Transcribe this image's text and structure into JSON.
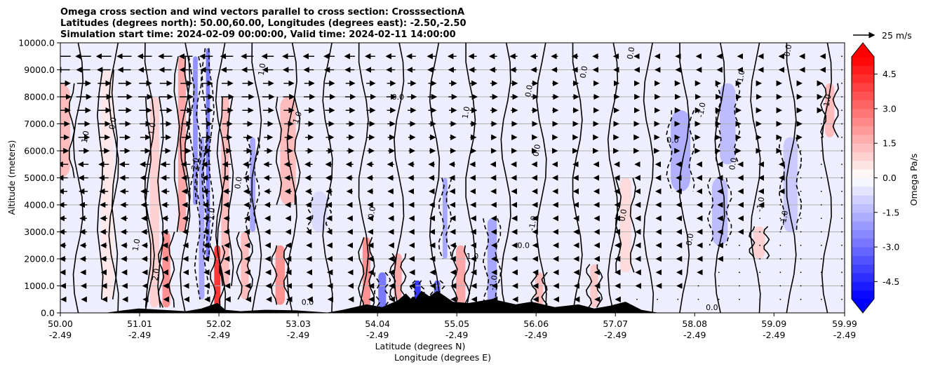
{
  "chart_data": {
    "type": "heatmap",
    "title_lines": [
      "Omega cross section and wind vectors parallel to cross section: CrosssectionA",
      "Latitudes (degrees north): 50.00,60.00, Longitudes (degrees east): -2.50,-2.50",
      "Simulation start time: 2024-02-09 00:00:00, Valid time: 2024-02-11 14:00:00"
    ],
    "xlabel_lat": "Latitude (degrees N)",
    "xlabel_lon": "Longitude (degrees E)",
    "ylabel": "Altitude (meters)",
    "x_range": [
      50.0,
      59.99
    ],
    "ylim": [
      0,
      10000
    ],
    "x_ticks_lat": [
      "50.00",
      "51.01",
      "52.02",
      "53.03",
      "54.04",
      "55.05",
      "56.06",
      "57.07",
      "58.08",
      "59.09",
      "59.99"
    ],
    "x_tick_values": [
      50.0,
      51.01,
      52.02,
      53.03,
      54.04,
      55.05,
      56.06,
      57.07,
      58.08,
      59.09,
      59.99
    ],
    "x_ticks_lon": [
      "-2.49",
      "-2.49",
      "-2.49",
      "-2.49",
      "-2.49",
      "-2.49",
      "-2.49",
      "-2.49",
      "-2.49",
      "-2.49",
      "-2.49"
    ],
    "y_tick_values": [
      0,
      1000,
      2000,
      3000,
      4000,
      5000,
      6000,
      7000,
      8000,
      9000,
      10000
    ],
    "y_tick_labels": [
      "0.0",
      "1000.0",
      "2000.0",
      "3000.0",
      "4000.0",
      "5000.0",
      "6000.0",
      "7000.0",
      "8000.0",
      "9000.0",
      "10000.0"
    ],
    "colorbar": {
      "label": "Omega Pa/s",
      "min": -5.25,
      "max": 5.25,
      "step": 0.375,
      "tick_values": [
        4.5,
        3.0,
        1.5,
        0.0,
        -1.5,
        -3.0,
        -4.5
      ],
      "tick_labels": [
        "4.5",
        "3.0",
        "1.5",
        "0.0",
        "-1.5",
        "-3.0",
        "-4.5"
      ],
      "extend": "both",
      "neg_color": "#0000ff",
      "zero_color": "#ffffff",
      "pos_color": "#ff0000"
    },
    "vector_key": {
      "label": "25 m/s",
      "speed": 25
    },
    "omega_features": [
      {
        "lat": 50.0,
        "z0": 5000,
        "z1": 8500,
        "w": 0.25,
        "omega": 1.5
      },
      {
        "lat": 50.6,
        "z0": 500,
        "z1": 9000,
        "w": 0.15,
        "omega": 0.5
      },
      {
        "lat": 51.2,
        "z0": 200,
        "z1": 8000,
        "w": 0.12,
        "omega": 1.0
      },
      {
        "lat": 51.35,
        "z0": 200,
        "z1": 3000,
        "w": 0.1,
        "omega": 2.5
      },
      {
        "lat": 51.55,
        "z0": 3000,
        "z1": 9500,
        "w": 0.1,
        "omega": 2.0
      },
      {
        "lat": 51.72,
        "z0": 4000,
        "z1": 9500,
        "w": 0.06,
        "omega": -2.5
      },
      {
        "lat": 51.8,
        "z0": 500,
        "z1": 6500,
        "w": 0.07,
        "omega": -2.0
      },
      {
        "lat": 51.88,
        "z0": 2000,
        "z1": 9800,
        "w": 0.05,
        "omega": -3.0
      },
      {
        "lat": 52.0,
        "z0": 0,
        "z1": 2500,
        "w": 0.08,
        "omega": 4.5
      },
      {
        "lat": 52.1,
        "z0": 1000,
        "z1": 8000,
        "w": 0.1,
        "omega": 1.5
      },
      {
        "lat": 52.35,
        "z0": 500,
        "z1": 3000,
        "w": 0.1,
        "omega": 1.5
      },
      {
        "lat": 52.45,
        "z0": 3000,
        "z1": 6500,
        "w": 0.07,
        "omega": -2.0
      },
      {
        "lat": 52.8,
        "z0": 300,
        "z1": 2500,
        "w": 0.12,
        "omega": 2.5
      },
      {
        "lat": 52.9,
        "z0": 4000,
        "z1": 8000,
        "w": 0.2,
        "omega": 1.5
      },
      {
        "lat": 53.3,
        "z0": 3000,
        "z1": 4500,
        "w": 0.2,
        "omega": -0.8
      },
      {
        "lat": 53.9,
        "z0": 100,
        "z1": 2800,
        "w": 0.1,
        "omega": 2.5
      },
      {
        "lat": 54.1,
        "z0": 100,
        "z1": 1500,
        "w": 0.1,
        "omega": -3.0
      },
      {
        "lat": 54.3,
        "z0": 500,
        "z1": 2200,
        "w": 0.1,
        "omega": 2.0
      },
      {
        "lat": 54.55,
        "z0": 100,
        "z1": 1200,
        "w": 0.08,
        "omega": -4.5
      },
      {
        "lat": 54.8,
        "z0": 100,
        "z1": 1200,
        "w": 0.08,
        "omega": -3.5
      },
      {
        "lat": 54.9,
        "z0": 2000,
        "z1": 5000,
        "w": 0.06,
        "omega": -2.0
      },
      {
        "lat": 55.1,
        "z0": 300,
        "z1": 2500,
        "w": 0.12,
        "omega": 2.0
      },
      {
        "lat": 55.5,
        "z0": 300,
        "z1": 3500,
        "w": 0.12,
        "omega": -2.0
      },
      {
        "lat": 56.1,
        "z0": 200,
        "z1": 1500,
        "w": 0.1,
        "omega": 1.5
      },
      {
        "lat": 56.8,
        "z0": 200,
        "z1": 1800,
        "w": 0.1,
        "omega": 1.2
      },
      {
        "lat": 57.2,
        "z0": 1500,
        "z1": 5000,
        "w": 0.15,
        "omega": 0.8
      },
      {
        "lat": 57.9,
        "z0": 4500,
        "z1": 7500,
        "w": 0.25,
        "omega": -1.8
      },
      {
        "lat": 58.4,
        "z0": 2500,
        "z1": 5000,
        "w": 0.2,
        "omega": -1.5
      },
      {
        "lat": 58.5,
        "z0": 5500,
        "z1": 8500,
        "w": 0.2,
        "omega": -1.5
      },
      {
        "lat": 58.9,
        "z0": 2000,
        "z1": 3200,
        "w": 0.15,
        "omega": 1.0
      },
      {
        "lat": 59.3,
        "z0": 3000,
        "z1": 6500,
        "w": 0.18,
        "omega": -1.2
      },
      {
        "lat": 59.8,
        "z0": 6500,
        "z1": 8500,
        "w": 0.12,
        "omega": 1.5
      }
    ],
    "terrain_profile": [
      {
        "lat": 50.0,
        "alt": 0
      },
      {
        "lat": 50.6,
        "alt": 0
      },
      {
        "lat": 50.8,
        "alt": 80
      },
      {
        "lat": 51.0,
        "alt": 150
      },
      {
        "lat": 51.3,
        "alt": 100
      },
      {
        "lat": 51.6,
        "alt": 50
      },
      {
        "lat": 51.8,
        "alt": 150
      },
      {
        "lat": 52.0,
        "alt": 350
      },
      {
        "lat": 52.1,
        "alt": 100
      },
      {
        "lat": 52.3,
        "alt": 50
      },
      {
        "lat": 52.6,
        "alt": 100
      },
      {
        "lat": 53.0,
        "alt": 80
      },
      {
        "lat": 53.4,
        "alt": 0
      },
      {
        "lat": 53.6,
        "alt": 100
      },
      {
        "lat": 53.9,
        "alt": 300
      },
      {
        "lat": 54.1,
        "alt": 200
      },
      {
        "lat": 54.3,
        "alt": 450
      },
      {
        "lat": 54.4,
        "alt": 700
      },
      {
        "lat": 54.5,
        "alt": 400
      },
      {
        "lat": 54.6,
        "alt": 800
      },
      {
        "lat": 54.7,
        "alt": 600
      },
      {
        "lat": 54.8,
        "alt": 800
      },
      {
        "lat": 55.0,
        "alt": 400
      },
      {
        "lat": 55.2,
        "alt": 350
      },
      {
        "lat": 55.5,
        "alt": 500
      },
      {
        "lat": 55.8,
        "alt": 300
      },
      {
        "lat": 56.0,
        "alt": 400
      },
      {
        "lat": 56.3,
        "alt": 200
      },
      {
        "lat": 56.6,
        "alt": 300
      },
      {
        "lat": 56.8,
        "alt": 150
      },
      {
        "lat": 57.0,
        "alt": 250
      },
      {
        "lat": 57.2,
        "alt": 400
      },
      {
        "lat": 57.4,
        "alt": 100
      },
      {
        "lat": 57.6,
        "alt": 0
      },
      {
        "lat": 59.99,
        "alt": 0
      }
    ],
    "wind_rows": [
      {
        "alt": 9500,
        "u": -18
      },
      {
        "alt": 9000,
        "u": -16
      },
      {
        "alt": 8500,
        "u": 16
      },
      {
        "alt": 8000,
        "u": 18
      },
      {
        "alt": 7500,
        "u": 16
      },
      {
        "alt": 7000,
        "u": 14
      },
      {
        "alt": 6500,
        "u": 13
      },
      {
        "alt": 6000,
        "u": 12
      },
      {
        "alt": 5500,
        "u": -12
      },
      {
        "alt": 5000,
        "u": -11
      },
      {
        "alt": 4500,
        "u": -10
      },
      {
        "alt": 4000,
        "u": -9
      },
      {
        "alt": 3500,
        "u": -8
      },
      {
        "alt": 3000,
        "u": -8
      },
      {
        "alt": 2500,
        "u": -7
      },
      {
        "alt": 2000,
        "u": -7
      },
      {
        "alt": 1500,
        "u": -6
      },
      {
        "alt": 1000,
        "u": -5
      },
      {
        "alt": 500,
        "u": -4
      }
    ],
    "contour_labels": [
      {
        "text": "0.0",
        "lat": 50.7,
        "alt": 7000,
        "rot": -80
      },
      {
        "text": "1.0",
        "lat": 50.35,
        "alt": 6500,
        "rot": -80
      },
      {
        "text": "1.0",
        "lat": 51.2,
        "alt": 6800,
        "rot": -80
      },
      {
        "text": "1.0",
        "lat": 52.6,
        "alt": 9000,
        "rot": -80
      },
      {
        "text": "0.0",
        "lat": 52.3,
        "alt": 4800,
        "rot": -80
      },
      {
        "text": "1.0",
        "lat": 53.05,
        "alt": 7200,
        "rot": -70
      },
      {
        "text": "2.0",
        "lat": 51.75,
        "alt": 5500,
        "rot": -80
      },
      {
        "text": "-1.0",
        "lat": 51.95,
        "alt": 3600,
        "rot": -80
      },
      {
        "text": "1.0",
        "lat": 51.0,
        "alt": 2500,
        "rot": -80
      },
      {
        "text": "2.0",
        "lat": 51.25,
        "alt": 1400,
        "rot": -80
      },
      {
        "text": "0.0",
        "lat": 54.3,
        "alt": 7900,
        "rot": 0
      },
      {
        "text": "1.0",
        "lat": 55.2,
        "alt": 7400,
        "rot": -80
      },
      {
        "text": "0.0",
        "lat": 56.0,
        "alt": 8200,
        "rot": -80
      },
      {
        "text": "0.0",
        "lat": 56.1,
        "alt": 6000,
        "rot": -80
      },
      {
        "text": "0.0",
        "lat": 56.7,
        "alt": 8900,
        "rot": -80
      },
      {
        "text": "0.0",
        "lat": 57.3,
        "alt": 9600,
        "rot": -80
      },
      {
        "text": "-1.0",
        "lat": 58.2,
        "alt": 7500,
        "rot": -80
      },
      {
        "text": "-1.0",
        "lat": 58.7,
        "alt": 8700,
        "rot": -80
      },
      {
        "text": "0.0",
        "lat": 59.3,
        "alt": 9700,
        "rot": -80
      },
      {
        "text": "0.0",
        "lat": 58.6,
        "alt": 5500,
        "rot": -80
      },
      {
        "text": "-1.0",
        "lat": 58.95,
        "alt": 4000,
        "rot": -80
      },
      {
        "text": "-1.0",
        "lat": 59.25,
        "alt": 3500,
        "rot": -80
      },
      {
        "text": "0.0",
        "lat": 55.9,
        "alt": 2400,
        "rot": 0
      },
      {
        "text": "1.0",
        "lat": 55.25,
        "alt": 2000,
        "rot": 0
      },
      {
        "text": "0.0",
        "lat": 53.15,
        "alt": 300,
        "rot": 0
      },
      {
        "text": "-1.0",
        "lat": 56.05,
        "alt": 3300,
        "rot": -80
      },
      {
        "text": "0.0",
        "lat": 54.0,
        "alt": 3700,
        "rot": -80
      },
      {
        "text": "-1.0",
        "lat": 55.55,
        "alt": 1100,
        "rot": -80
      },
      {
        "text": "0.0",
        "lat": 57.2,
        "alt": 3600,
        "rot": -80
      },
      {
        "text": "0.0",
        "lat": 57.8,
        "alt": 6300,
        "rot": 0
      },
      {
        "text": "-1.0",
        "lat": 59.8,
        "alt": 7800,
        "rot": -80
      },
      {
        "text": "0.0",
        "lat": 58.05,
        "alt": 2700,
        "rot": -80
      },
      {
        "text": "0.0",
        "lat": 58.3,
        "alt": 100,
        "rot": 0
      }
    ]
  }
}
